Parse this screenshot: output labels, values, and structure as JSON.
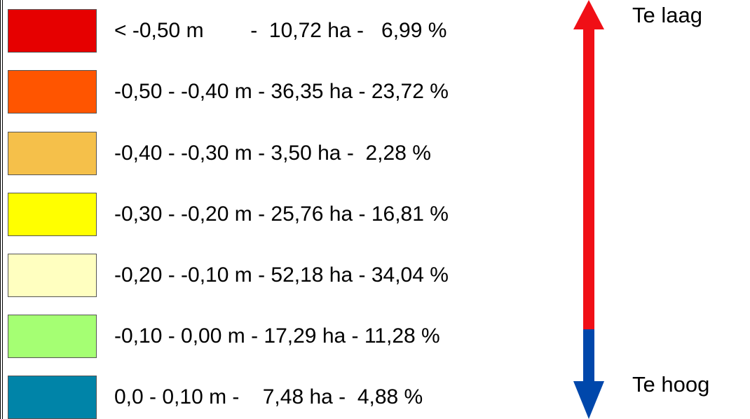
{
  "legend": {
    "items": [
      {
        "label": "< -0,50 m        -  10,72 ha -   6,99 %",
        "color": "#e60000"
      },
      {
        "label": "-0,50 - -0,40 m - 36,35 ha - 23,72 %",
        "color": "#ff5500"
      },
      {
        "label": "-0,40 - -0,30 m - 3,50 ha -  2,28 %",
        "color": "#f5c04a"
      },
      {
        "label": "-0,30 - -0,20 m - 25,76 ha - 16,81 %",
        "color": "#ffff00"
      },
      {
        "label": "-0,20 - -0,10 m - 52,18 ha - 34,04 %",
        "color": "#ffffc0"
      },
      {
        "label": "-0,10 - 0,00 m - 17,29 ha - 11,28 %",
        "color": "#a5ff73"
      },
      {
        "label": "0,0 - 0,10 m -    7,48 ha -  4,88 %",
        "color": "#0084a8"
      }
    ]
  },
  "scale": {
    "top_label": "Te laag",
    "bottom_label": "Te hoog",
    "top_color": "#f00f16",
    "bottom_color": "#0047ab"
  }
}
